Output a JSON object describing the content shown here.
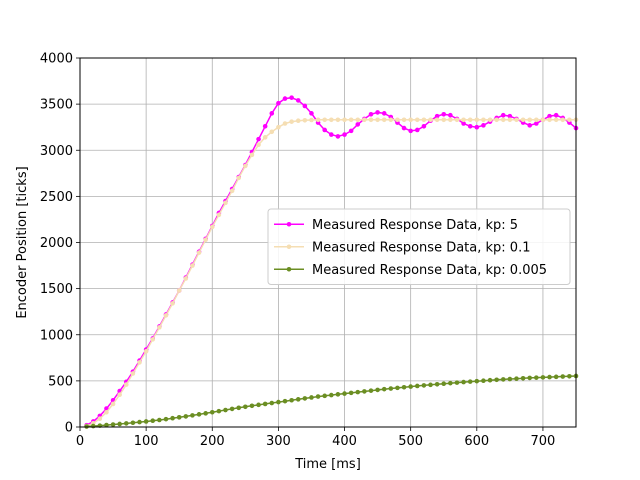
{
  "chart_data": {
    "type": "line",
    "title": "",
    "xlabel": "Time [ms]",
    "ylabel": "Encoder Position [ticks]",
    "xlim": [
      0,
      750
    ],
    "ylim": [
      0,
      4000
    ],
    "xticks": [
      0,
      100,
      200,
      300,
      400,
      500,
      600,
      700
    ],
    "yticks": [
      0,
      500,
      1000,
      1500,
      2000,
      2500,
      3000,
      3500,
      4000
    ],
    "grid": true,
    "legend_position": "center-right",
    "series": [
      {
        "name": "Measured Response Data, kp: 5",
        "color": "#ff00ff",
        "x": [
          10,
          20,
          30,
          40,
          50,
          60,
          70,
          80,
          90,
          100,
          110,
          120,
          130,
          140,
          150,
          160,
          170,
          180,
          190,
          200,
          210,
          220,
          230,
          240,
          250,
          260,
          270,
          280,
          290,
          300,
          310,
          320,
          330,
          340,
          350,
          360,
          370,
          380,
          390,
          400,
          410,
          420,
          430,
          440,
          450,
          460,
          470,
          480,
          490,
          500,
          510,
          520,
          530,
          540,
          550,
          560,
          570,
          580,
          590,
          600,
          610,
          620,
          630,
          640,
          650,
          660,
          670,
          680,
          690,
          700,
          710,
          720,
          730,
          740,
          750
        ],
        "y": [
          20,
          60,
          120,
          200,
          290,
          390,
          490,
          600,
          720,
          840,
          960,
          1090,
          1220,
          1350,
          1480,
          1620,
          1760,
          1900,
          2040,
          2180,
          2320,
          2450,
          2580,
          2710,
          2840,
          2980,
          3120,
          3260,
          3400,
          3510,
          3560,
          3570,
          3540,
          3480,
          3400,
          3300,
          3220,
          3170,
          3150,
          3170,
          3210,
          3280,
          3340,
          3390,
          3410,
          3400,
          3360,
          3300,
          3240,
          3210,
          3220,
          3260,
          3320,
          3370,
          3390,
          3380,
          3340,
          3290,
          3260,
          3250,
          3270,
          3310,
          3350,
          3380,
          3370,
          3340,
          3300,
          3270,
          3290,
          3330,
          3370,
          3380,
          3350,
          3300,
          3240
        ]
      },
      {
        "name": "Measured Response Data, kp: 0.1",
        "color": "#f5deb3",
        "x": [
          10,
          20,
          30,
          40,
          50,
          60,
          70,
          80,
          90,
          100,
          110,
          120,
          130,
          140,
          150,
          160,
          170,
          180,
          190,
          200,
          210,
          220,
          230,
          240,
          250,
          260,
          270,
          280,
          290,
          300,
          310,
          320,
          330,
          340,
          350,
          360,
          370,
          380,
          390,
          400,
          410,
          420,
          430,
          440,
          450,
          460,
          470,
          480,
          490,
          500,
          510,
          520,
          530,
          540,
          550,
          560,
          570,
          580,
          590,
          600,
          610,
          620,
          630,
          640,
          650,
          660,
          670,
          680,
          690,
          700,
          710,
          720,
          730,
          740,
          750
        ],
        "y": [
          10,
          40,
          90,
          160,
          250,
          350,
          460,
          580,
          700,
          820,
          950,
          1080,
          1210,
          1340,
          1480,
          1610,
          1750,
          1890,
          2030,
          2170,
          2300,
          2430,
          2560,
          2700,
          2830,
          2950,
          3060,
          3140,
          3200,
          3250,
          3290,
          3310,
          3320,
          3325,
          3328,
          3330,
          3330,
          3330,
          3330,
          3330,
          3330,
          3330,
          3330,
          3330,
          3330,
          3330,
          3330,
          3330,
          3330,
          3330,
          3330,
          3330,
          3330,
          3330,
          3330,
          3330,
          3330,
          3330,
          3330,
          3330,
          3330,
          3330,
          3330,
          3330,
          3330,
          3330,
          3330,
          3330,
          3330,
          3330,
          3330,
          3330,
          3330,
          3330,
          3330
        ]
      },
      {
        "name": "Measured Response Data, kp: 0.005",
        "color": "#6b8e23",
        "x": [
          10,
          20,
          30,
          40,
          50,
          60,
          70,
          80,
          90,
          100,
          110,
          120,
          130,
          140,
          150,
          160,
          170,
          180,
          190,
          200,
          210,
          220,
          230,
          240,
          250,
          260,
          270,
          280,
          290,
          300,
          310,
          320,
          330,
          340,
          350,
          360,
          370,
          380,
          390,
          400,
          410,
          420,
          430,
          440,
          450,
          460,
          470,
          480,
          490,
          500,
          510,
          520,
          530,
          540,
          550,
          560,
          570,
          580,
          590,
          600,
          610,
          620,
          630,
          640,
          650,
          660,
          670,
          680,
          690,
          700,
          710,
          720,
          730,
          740,
          750
        ],
        "y": [
          5,
          10,
          15,
          21,
          27,
          33,
          39,
          46,
          53,
          60,
          68,
          76,
          85,
          95,
          105,
          115,
          126,
          137,
          148,
          160,
          172,
          184,
          196,
          208,
          219,
          230,
          240,
          250,
          260,
          270,
          280,
          290,
          300,
          310,
          320,
          330,
          338,
          346,
          354,
          362,
          370,
          378,
          386,
          394,
          402,
          410,
          417,
          424,
          431,
          438,
          445,
          451,
          457,
          463,
          469,
          475,
          481,
          487,
          492,
          497,
          502,
          507,
          512,
          516,
          520,
          524,
          528,
          532,
          535,
          538,
          541,
          544,
          547,
          550,
          553
        ]
      }
    ]
  }
}
